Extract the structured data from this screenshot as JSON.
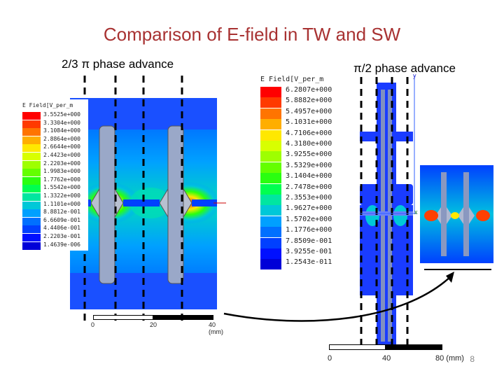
{
  "title": "Comparison of E-field in TW and SW",
  "left_label": "2/3 π phase advance",
  "right_label": "π/2 phase advance",
  "left_legend": {
    "header": "E Field[V_per_m",
    "values": [
      "3.5525e+000",
      "3.3304e+000",
      "3.1084e+000",
      "2.8864e+000",
      "2.6644e+000",
      "2.4423e+000",
      "2.2203e+000",
      "1.9983e+000",
      "1.7762e+000",
      "1.5542e+000",
      "1.3322e+000",
      "1.1101e+000",
      "8.8812e-001",
      "6.6609e-001",
      "4.4406e-001",
      "2.2203e-001",
      "1.4639e-006"
    ]
  },
  "right_legend": {
    "header": "E Field[V_per_m",
    "values": [
      "6.2807e+000",
      "5.8882e+000",
      "5.4957e+000",
      "5.1031e+000",
      "4.7106e+000",
      "4.3180e+000",
      "3.9255e+000",
      "3.5329e+000",
      "3.1404e+000",
      "2.7478e+000",
      "2.3553e+000",
      "1.9627e+000",
      "1.5702e+000",
      "1.1776e+000",
      "7.8509e-001",
      "3.9255e-001",
      "1.2543e-011"
    ]
  },
  "legend_colors": [
    "#ff0000",
    "#ff3a00",
    "#ff7400",
    "#ffae00",
    "#ffe800",
    "#d8ff00",
    "#9eff00",
    "#64ff00",
    "#2aff10",
    "#00ff50",
    "#00e6a0",
    "#00c8d8",
    "#00a0ff",
    "#0070ff",
    "#0040ff",
    "#0010ff",
    "#0000d8"
  ],
  "left_scale": {
    "ticks": [
      "0",
      "20",
      "40 (mm)"
    ]
  },
  "right_scale": {
    "ticks": [
      "0",
      "40",
      "80 (mm)"
    ]
  },
  "axis": {
    "y": "y",
    "x": "x"
  },
  "page_number": "8"
}
